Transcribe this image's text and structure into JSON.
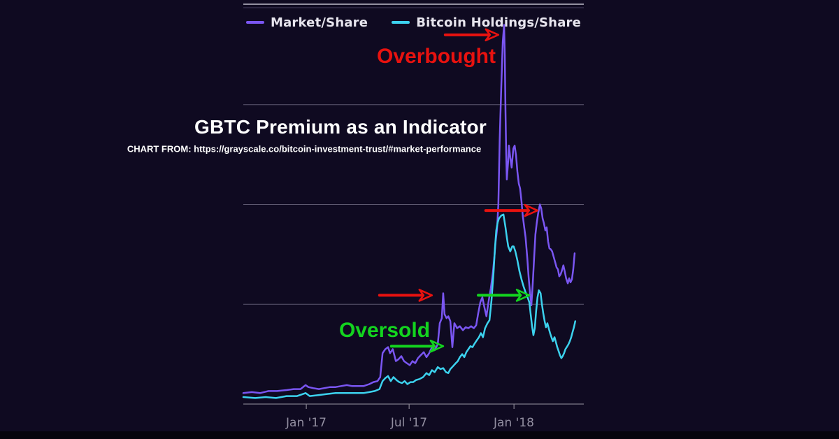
{
  "page": {
    "background": "#0f0a21",
    "bottom_bar_color": "#06040d"
  },
  "title": {
    "text": "GBTC Premium as an Indicator",
    "color": "#ffffff"
  },
  "source": {
    "text": "CHART FROM: https://grayscale.co/bitcoin-investment-trust/#market-performance",
    "color": "#ffffff"
  },
  "legend": {
    "text_color": "#e7e5ee",
    "items": [
      {
        "label": "Market/Share",
        "color": "#7a56f2"
      },
      {
        "label": "Bitcoin Holdings/Share",
        "color": "#3cd2ee"
      }
    ]
  },
  "annotations": {
    "overbought": {
      "text": "Overbought",
      "color": "#e8120f"
    },
    "oversold": {
      "text": "Oversold",
      "color": "#13d41f"
    },
    "arrows": [
      {
        "name": "red-arrow-top",
        "color": "#e8120f",
        "from": [
          593,
          370
        ],
        "to": [
          749,
          370
        ]
      },
      {
        "name": "red-arrow-middle",
        "color": "#e8120f",
        "from": [
          400,
          109
        ],
        "to": [
          554,
          109
        ]
      },
      {
        "name": "red-arrow-upper-right",
        "color": "#e8120f",
        "from": [
          712,
          194
        ],
        "to": [
          864,
          194
        ]
      },
      {
        "name": "green-arrow-left",
        "color": "#13d41f",
        "from": [
          435,
          58
        ],
        "to": [
          587,
          58
        ]
      },
      {
        "name": "green-arrow-right",
        "color": "#13d41f",
        "from": [
          690,
          109
        ],
        "to": [
          840,
          109
        ]
      }
    ]
  },
  "chart_data": {
    "type": "line",
    "title": "GBTC Premium as an Indicator",
    "x_axis": {
      "ticks": [
        {
          "label": "Jan '17",
          "pos": 185
        },
        {
          "label": "Jul '17",
          "pos": 487
        },
        {
          "label": "Jan '18",
          "pos": 795
        }
      ],
      "range": [
        0,
        1000
      ],
      "note": "pos in 0-1000 plot units spanning ~Sep 2016 to ~May 2018; only three tick labels visible"
    },
    "y_axis": {
      "labels_visible": false,
      "range": [
        0,
        400
      ],
      "gridlines": [
        100,
        200,
        300
      ],
      "top_border": 400,
      "note": "y-axis unlabeled in image; values are plot-relative units, gridlines evenly spaced"
    },
    "grid": "horizontal-only",
    "legend_position": "top-center",
    "series": [
      {
        "name": "Market/Share",
        "color": "#7a56f2",
        "points": [
          [
            0,
            11
          ],
          [
            25,
            12
          ],
          [
            49,
            11
          ],
          [
            74,
            13
          ],
          [
            99,
            13
          ],
          [
            127,
            14
          ],
          [
            148,
            15
          ],
          [
            168,
            15
          ],
          [
            183,
            19
          ],
          [
            191,
            17
          ],
          [
            205,
            16
          ],
          [
            222,
            15
          ],
          [
            238,
            16
          ],
          [
            255,
            17
          ],
          [
            271,
            17
          ],
          [
            287,
            18
          ],
          [
            304,
            19
          ],
          [
            320,
            18
          ],
          [
            337,
            18
          ],
          [
            353,
            18
          ],
          [
            370,
            20
          ],
          [
            382,
            22
          ],
          [
            394,
            23
          ],
          [
            402,
            27
          ],
          [
            409,
            51
          ],
          [
            417,
            55
          ],
          [
            425,
            57
          ],
          [
            431,
            51
          ],
          [
            439,
            55
          ],
          [
            448,
            43
          ],
          [
            456,
            45
          ],
          [
            464,
            48
          ],
          [
            472,
            43
          ],
          [
            480,
            41
          ],
          [
            489,
            39
          ],
          [
            497,
            43
          ],
          [
            505,
            41
          ],
          [
            513,
            46
          ],
          [
            521,
            49
          ],
          [
            530,
            52
          ],
          [
            538,
            47
          ],
          [
            546,
            51
          ],
          [
            554,
            57
          ],
          [
            562,
            54
          ],
          [
            571,
            60
          ],
          [
            577,
            81
          ],
          [
            583,
            86
          ],
          [
            587,
            111
          ],
          [
            591,
            90
          ],
          [
            597,
            86
          ],
          [
            602,
            88
          ],
          [
            608,
            83
          ],
          [
            614,
            57
          ],
          [
            620,
            81
          ],
          [
            628,
            76
          ],
          [
            636,
            78
          ],
          [
            645,
            74
          ],
          [
            653,
            77
          ],
          [
            661,
            76
          ],
          [
            669,
            78
          ],
          [
            677,
            76
          ],
          [
            684,
            79
          ],
          [
            690,
            91
          ],
          [
            696,
            102
          ],
          [
            702,
            107
          ],
          [
            708,
            97
          ],
          [
            714,
            88
          ],
          [
            721,
            104
          ],
          [
            727,
            116
          ],
          [
            733,
            132
          ],
          [
            737,
            146
          ],
          [
            741,
            163
          ],
          [
            745,
            174
          ],
          [
            749,
            200
          ],
          [
            753,
            265
          ],
          [
            758,
            321
          ],
          [
            762,
            363
          ],
          [
            766,
            380
          ],
          [
            768,
            349
          ],
          [
            770,
            293
          ],
          [
            772,
            251
          ],
          [
            774,
            225
          ],
          [
            778,
            244
          ],
          [
            780,
            259
          ],
          [
            784,
            247
          ],
          [
            788,
            237
          ],
          [
            793,
            256
          ],
          [
            797,
            259
          ],
          [
            801,
            249
          ],
          [
            805,
            233
          ],
          [
            809,
            221
          ],
          [
            813,
            216
          ],
          [
            817,
            203
          ],
          [
            821,
            188
          ],
          [
            825,
            177
          ],
          [
            829,
            167
          ],
          [
            834,
            146
          ],
          [
            838,
            127
          ],
          [
            842,
            111
          ],
          [
            846,
            99
          ],
          [
            850,
            121
          ],
          [
            854,
            146
          ],
          [
            858,
            170
          ],
          [
            862,
            182
          ],
          [
            866,
            191
          ],
          [
            871,
            200
          ],
          [
            875,
            196
          ],
          [
            879,
            186
          ],
          [
            883,
            181
          ],
          [
            887,
            174
          ],
          [
            891,
            177
          ],
          [
            895,
            163
          ],
          [
            899,
            156
          ],
          [
            903,
            155
          ],
          [
            907,
            153
          ],
          [
            912,
            147
          ],
          [
            916,
            142
          ],
          [
            920,
            137
          ],
          [
            924,
            135
          ],
          [
            928,
            128
          ],
          [
            932,
            130
          ],
          [
            936,
            134
          ],
          [
            940,
            139
          ],
          [
            944,
            133
          ],
          [
            948,
            126
          ],
          [
            953,
            121
          ],
          [
            957,
            126
          ],
          [
            961,
            122
          ],
          [
            965,
            125
          ],
          [
            969,
            135
          ],
          [
            973,
            151
          ]
        ]
      },
      {
        "name": "Bitcoin Holdings/Share",
        "color": "#3cd2ee",
        "points": [
          [
            0,
            7
          ],
          [
            35,
            6
          ],
          [
            66,
            7
          ],
          [
            96,
            6
          ],
          [
            127,
            8
          ],
          [
            158,
            8
          ],
          [
            183,
            11
          ],
          [
            195,
            8
          ],
          [
            220,
            9
          ],
          [
            244,
            10
          ],
          [
            271,
            11
          ],
          [
            296,
            11
          ],
          [
            320,
            11
          ],
          [
            337,
            11
          ],
          [
            353,
            11
          ],
          [
            370,
            12
          ],
          [
            386,
            13
          ],
          [
            400,
            15
          ],
          [
            409,
            23
          ],
          [
            417,
            26
          ],
          [
            425,
            28
          ],
          [
            433,
            23
          ],
          [
            441,
            27
          ],
          [
            450,
            24
          ],
          [
            458,
            22
          ],
          [
            466,
            21
          ],
          [
            474,
            23
          ],
          [
            482,
            20
          ],
          [
            491,
            22
          ],
          [
            499,
            22
          ],
          [
            507,
            24
          ],
          [
            517,
            25
          ],
          [
            528,
            27
          ],
          [
            538,
            31
          ],
          [
            546,
            29
          ],
          [
            554,
            34
          ],
          [
            562,
            32
          ],
          [
            571,
            37
          ],
          [
            579,
            35
          ],
          [
            587,
            36
          ],
          [
            595,
            32
          ],
          [
            602,
            31
          ],
          [
            608,
            35
          ],
          [
            616,
            38
          ],
          [
            624,
            41
          ],
          [
            630,
            43
          ],
          [
            636,
            47
          ],
          [
            643,
            50
          ],
          [
            649,
            47
          ],
          [
            655,
            52
          ],
          [
            661,
            55
          ],
          [
            667,
            58
          ],
          [
            673,
            57
          ],
          [
            680,
            61
          ],
          [
            686,
            64
          ],
          [
            692,
            67
          ],
          [
            698,
            71
          ],
          [
            704,
            67
          ],
          [
            710,
            76
          ],
          [
            717,
            81
          ],
          [
            723,
            84
          ],
          [
            729,
            104
          ],
          [
            735,
            132
          ],
          [
            739,
            156
          ],
          [
            743,
            174
          ],
          [
            747,
            182
          ],
          [
            751,
            186
          ],
          [
            758,
            189
          ],
          [
            764,
            190
          ],
          [
            770,
            177
          ],
          [
            774,
            167
          ],
          [
            778,
            158
          ],
          [
            784,
            153
          ],
          [
            790,
            158
          ],
          [
            794,
            158
          ],
          [
            799,
            153
          ],
          [
            805,
            144
          ],
          [
            811,
            133
          ],
          [
            817,
            125
          ],
          [
            823,
            118
          ],
          [
            829,
            112
          ],
          [
            835,
            107
          ],
          [
            840,
            102
          ],
          [
            844,
            90
          ],
          [
            848,
            78
          ],
          [
            852,
            69
          ],
          [
            856,
            76
          ],
          [
            860,
            93
          ],
          [
            864,
            107
          ],
          [
            868,
            114
          ],
          [
            873,
            111
          ],
          [
            877,
            100
          ],
          [
            881,
            91
          ],
          [
            885,
            83
          ],
          [
            889,
            77
          ],
          [
            893,
            81
          ],
          [
            897,
            76
          ],
          [
            901,
            71
          ],
          [
            905,
            67
          ],
          [
            909,
            63
          ],
          [
            914,
            67
          ],
          [
            918,
            62
          ],
          [
            922,
            57
          ],
          [
            926,
            53
          ],
          [
            930,
            49
          ],
          [
            934,
            46
          ],
          [
            938,
            48
          ],
          [
            942,
            51
          ],
          [
            946,
            55
          ],
          [
            950,
            57
          ],
          [
            955,
            60
          ],
          [
            959,
            63
          ],
          [
            963,
            67
          ],
          [
            967,
            72
          ],
          [
            971,
            77
          ],
          [
            975,
            83
          ]
        ]
      }
    ],
    "style": {
      "gridline_color": "#77738a",
      "top_border_color": "#bfbccb",
      "top_border_shadow_color": "#39334f",
      "axis_color": "#8b8794",
      "tick_label_color": "#928ea0"
    }
  }
}
